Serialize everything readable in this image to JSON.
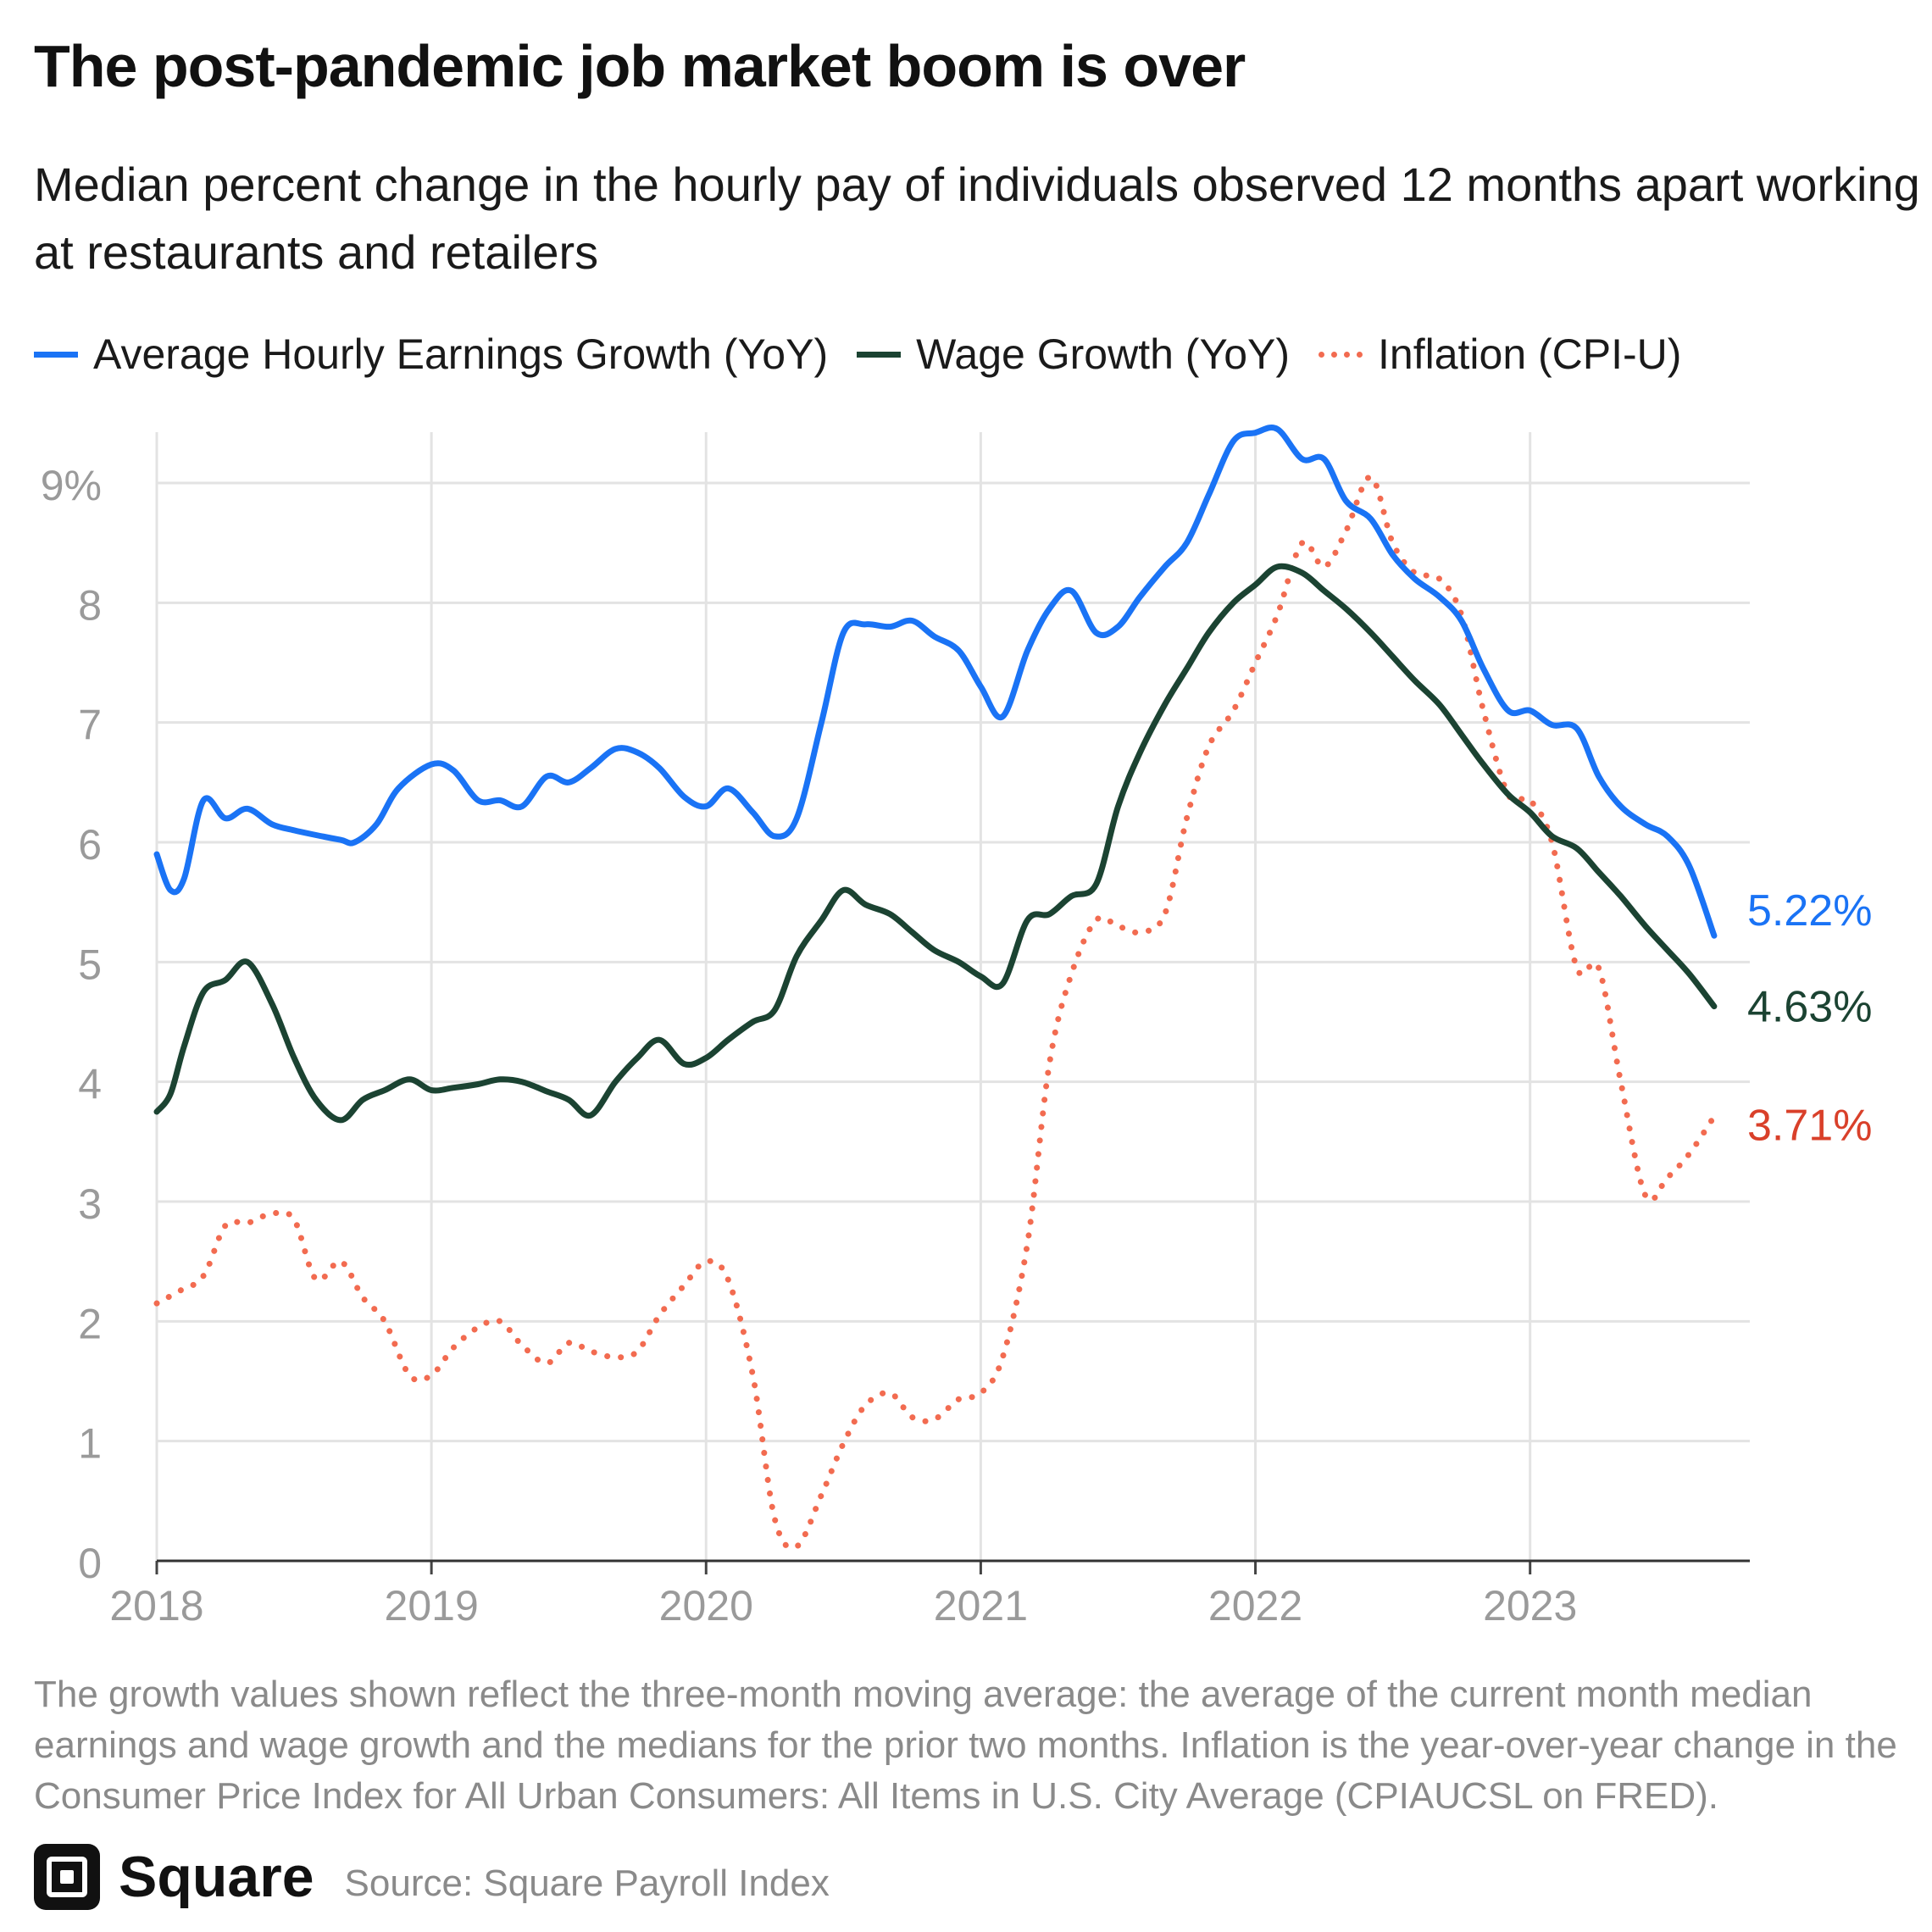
{
  "title": "The post-pandemic job market boom is over",
  "subtitle": "Median percent change in the hourly pay of individuals observed 12 months apart working at restaurants and retailers",
  "footnote": "The growth values shown reflect the three-month moving average: the average of the current month median earnings and wage growth and the medians for the prior two months. Inflation is the year-over-year change in the Consumer Price Index for All Urban Consumers: All Items in U.S. City Average (CPIAUCSL on FRED).",
  "brand": {
    "name": "Square",
    "logo_icon": "square-logo-icon"
  },
  "source": "Source: Square Payroll Index",
  "chart_data": {
    "type": "line",
    "title": "The post-pandemic job market boom is over",
    "xlabel": "",
    "ylabel": "",
    "xlim": [
      2018.0,
      2023.8
    ],
    "ylim": [
      0,
      9.5
    ],
    "grid": true,
    "legend_placement": "top",
    "x_ticks": [
      {
        "value": 2018,
        "label": "2018"
      },
      {
        "value": 2019,
        "label": "2019"
      },
      {
        "value": 2020,
        "label": "2020"
      },
      {
        "value": 2021,
        "label": "2021"
      },
      {
        "value": 2022,
        "label": "2022"
      },
      {
        "value": 2023,
        "label": "2023"
      }
    ],
    "y_ticks": [
      {
        "value": 0,
        "label": "0"
      },
      {
        "value": 1,
        "label": "1"
      },
      {
        "value": 2,
        "label": "2"
      },
      {
        "value": 3,
        "label": "3"
      },
      {
        "value": 4,
        "label": "4"
      },
      {
        "value": 5,
        "label": "5"
      },
      {
        "value": 6,
        "label": "6"
      },
      {
        "value": 7,
        "label": "7"
      },
      {
        "value": 8,
        "label": "8"
      },
      {
        "value": 9,
        "label": "9%"
      }
    ],
    "series": [
      {
        "name": "Average Hourly Earnings Growth (YoY)",
        "color": "#1a73f5",
        "style": "solid",
        "end_label": "5.22%",
        "points": [
          [
            2018.0,
            5.9
          ],
          [
            2018.05,
            5.6
          ],
          [
            2018.1,
            5.7
          ],
          [
            2018.17,
            6.35
          ],
          [
            2018.25,
            6.2
          ],
          [
            2018.33,
            6.28
          ],
          [
            2018.42,
            6.15
          ],
          [
            2018.5,
            6.1
          ],
          [
            2018.58,
            6.06
          ],
          [
            2018.67,
            6.02
          ],
          [
            2018.72,
            6.0
          ],
          [
            2018.8,
            6.15
          ],
          [
            2018.88,
            6.45
          ],
          [
            2019.0,
            6.65
          ],
          [
            2019.08,
            6.6
          ],
          [
            2019.17,
            6.35
          ],
          [
            2019.25,
            6.35
          ],
          [
            2019.33,
            6.3
          ],
          [
            2019.42,
            6.55
          ],
          [
            2019.5,
            6.5
          ],
          [
            2019.58,
            6.62
          ],
          [
            2019.67,
            6.78
          ],
          [
            2019.75,
            6.75
          ],
          [
            2019.83,
            6.62
          ],
          [
            2019.92,
            6.38
          ],
          [
            2020.0,
            6.3
          ],
          [
            2020.08,
            6.45
          ],
          [
            2020.17,
            6.25
          ],
          [
            2020.25,
            6.05
          ],
          [
            2020.33,
            6.2
          ],
          [
            2020.42,
            7.0
          ],
          [
            2020.5,
            7.75
          ],
          [
            2020.58,
            7.82
          ],
          [
            2020.67,
            7.8
          ],
          [
            2020.75,
            7.85
          ],
          [
            2020.83,
            7.72
          ],
          [
            2020.92,
            7.6
          ],
          [
            2021.0,
            7.3
          ],
          [
            2021.08,
            7.05
          ],
          [
            2021.17,
            7.6
          ],
          [
            2021.25,
            7.95
          ],
          [
            2021.33,
            8.1
          ],
          [
            2021.42,
            7.75
          ],
          [
            2021.5,
            7.8
          ],
          [
            2021.58,
            8.05
          ],
          [
            2021.67,
            8.3
          ],
          [
            2021.75,
            8.5
          ],
          [
            2021.83,
            8.9
          ],
          [
            2021.92,
            9.35
          ],
          [
            2022.0,
            9.42
          ],
          [
            2022.08,
            9.45
          ],
          [
            2022.17,
            9.2
          ],
          [
            2022.25,
            9.2
          ],
          [
            2022.33,
            8.85
          ],
          [
            2022.42,
            8.7
          ],
          [
            2022.5,
            8.4
          ],
          [
            2022.58,
            8.2
          ],
          [
            2022.67,
            8.05
          ],
          [
            2022.75,
            7.85
          ],
          [
            2022.83,
            7.45
          ],
          [
            2022.92,
            7.1
          ],
          [
            2023.0,
            7.1
          ],
          [
            2023.08,
            6.98
          ],
          [
            2023.17,
            6.95
          ],
          [
            2023.25,
            6.55
          ],
          [
            2023.33,
            6.3
          ],
          [
            2023.42,
            6.15
          ],
          [
            2023.5,
            6.05
          ],
          [
            2023.58,
            5.8
          ],
          [
            2023.67,
            5.22
          ]
        ]
      },
      {
        "name": "Wage Growth (YoY)",
        "color": "#1b4332",
        "style": "solid",
        "end_label": "4.63%",
        "points": [
          [
            2018.0,
            3.75
          ],
          [
            2018.05,
            3.9
          ],
          [
            2018.1,
            4.3
          ],
          [
            2018.17,
            4.75
          ],
          [
            2018.25,
            4.85
          ],
          [
            2018.33,
            5.0
          ],
          [
            2018.42,
            4.65
          ],
          [
            2018.5,
            4.2
          ],
          [
            2018.58,
            3.85
          ],
          [
            2018.67,
            3.68
          ],
          [
            2018.75,
            3.85
          ],
          [
            2018.83,
            3.93
          ],
          [
            2018.92,
            4.02
          ],
          [
            2019.0,
            3.93
          ],
          [
            2019.08,
            3.95
          ],
          [
            2019.17,
            3.98
          ],
          [
            2019.25,
            4.02
          ],
          [
            2019.33,
            4.0
          ],
          [
            2019.42,
            3.92
          ],
          [
            2019.5,
            3.85
          ],
          [
            2019.58,
            3.72
          ],
          [
            2019.67,
            4.0
          ],
          [
            2019.75,
            4.2
          ],
          [
            2019.83,
            4.35
          ],
          [
            2019.92,
            4.15
          ],
          [
            2020.0,
            4.2
          ],
          [
            2020.08,
            4.35
          ],
          [
            2020.17,
            4.5
          ],
          [
            2020.25,
            4.6
          ],
          [
            2020.33,
            5.05
          ],
          [
            2020.42,
            5.35
          ],
          [
            2020.5,
            5.6
          ],
          [
            2020.58,
            5.48
          ],
          [
            2020.67,
            5.4
          ],
          [
            2020.75,
            5.25
          ],
          [
            2020.83,
            5.1
          ],
          [
            2020.92,
            5.0
          ],
          [
            2021.0,
            4.88
          ],
          [
            2021.08,
            4.82
          ],
          [
            2021.17,
            5.35
          ],
          [
            2021.25,
            5.4
          ],
          [
            2021.33,
            5.55
          ],
          [
            2021.42,
            5.65
          ],
          [
            2021.5,
            6.3
          ],
          [
            2021.58,
            6.75
          ],
          [
            2021.67,
            7.15
          ],
          [
            2021.75,
            7.45
          ],
          [
            2021.83,
            7.75
          ],
          [
            2021.92,
            8.0
          ],
          [
            2022.0,
            8.15
          ],
          [
            2022.08,
            8.3
          ],
          [
            2022.17,
            8.25
          ],
          [
            2022.25,
            8.1
          ],
          [
            2022.33,
            7.95
          ],
          [
            2022.42,
            7.75
          ],
          [
            2022.5,
            7.55
          ],
          [
            2022.58,
            7.35
          ],
          [
            2022.67,
            7.15
          ],
          [
            2022.75,
            6.9
          ],
          [
            2022.83,
            6.65
          ],
          [
            2022.92,
            6.4
          ],
          [
            2023.0,
            6.25
          ],
          [
            2023.08,
            6.05
          ],
          [
            2023.17,
            5.95
          ],
          [
            2023.25,
            5.75
          ],
          [
            2023.33,
            5.55
          ],
          [
            2023.42,
            5.3
          ],
          [
            2023.5,
            5.1
          ],
          [
            2023.58,
            4.9
          ],
          [
            2023.67,
            4.63
          ]
        ]
      },
      {
        "name": "Inflation (CPI-U)",
        "color": "#f26b50",
        "style": "dotted",
        "end_label": "3.71%",
        "points": [
          [
            2018.0,
            2.15
          ],
          [
            2018.08,
            2.25
          ],
          [
            2018.17,
            2.38
          ],
          [
            2018.25,
            2.8
          ],
          [
            2018.33,
            2.82
          ],
          [
            2018.42,
            2.9
          ],
          [
            2018.5,
            2.85
          ],
          [
            2018.58,
            2.35
          ],
          [
            2018.67,
            2.5
          ],
          [
            2018.75,
            2.2
          ],
          [
            2018.83,
            2.0
          ],
          [
            2018.92,
            1.55
          ],
          [
            2019.0,
            1.55
          ],
          [
            2019.08,
            1.78
          ],
          [
            2019.17,
            1.95
          ],
          [
            2019.25,
            2.0
          ],
          [
            2019.33,
            1.8
          ],
          [
            2019.42,
            1.65
          ],
          [
            2019.5,
            1.82
          ],
          [
            2019.58,
            1.75
          ],
          [
            2019.67,
            1.7
          ],
          [
            2019.75,
            1.75
          ],
          [
            2019.83,
            2.05
          ],
          [
            2019.92,
            2.3
          ],
          [
            2020.0,
            2.5
          ],
          [
            2020.08,
            2.35
          ],
          [
            2020.17,
            1.55
          ],
          [
            2020.25,
            0.35
          ],
          [
            2020.33,
            0.12
          ],
          [
            2020.42,
            0.55
          ],
          [
            2020.5,
            0.98
          ],
          [
            2020.58,
            1.3
          ],
          [
            2020.67,
            1.4
          ],
          [
            2020.75,
            1.2
          ],
          [
            2020.83,
            1.18
          ],
          [
            2020.92,
            1.35
          ],
          [
            2021.0,
            1.4
          ],
          [
            2021.08,
            1.7
          ],
          [
            2021.17,
            2.65
          ],
          [
            2021.25,
            4.15
          ],
          [
            2021.33,
            4.9
          ],
          [
            2021.42,
            5.35
          ],
          [
            2021.5,
            5.3
          ],
          [
            2021.58,
            5.25
          ],
          [
            2021.67,
            5.4
          ],
          [
            2021.75,
            6.2
          ],
          [
            2021.83,
            6.8
          ],
          [
            2021.92,
            7.1
          ],
          [
            2022.0,
            7.5
          ],
          [
            2022.08,
            7.9
          ],
          [
            2022.17,
            8.5
          ],
          [
            2022.25,
            8.3
          ],
          [
            2022.33,
            8.6
          ],
          [
            2022.42,
            9.05
          ],
          [
            2022.5,
            8.5
          ],
          [
            2022.58,
            8.25
          ],
          [
            2022.67,
            8.2
          ],
          [
            2022.75,
            7.9
          ],
          [
            2022.83,
            7.1
          ],
          [
            2022.92,
            6.4
          ],
          [
            2023.0,
            6.35
          ],
          [
            2023.08,
            6.0
          ],
          [
            2023.17,
            4.95
          ],
          [
            2023.25,
            4.95
          ],
          [
            2023.33,
            4.0
          ],
          [
            2023.42,
            3.05
          ],
          [
            2023.5,
            3.2
          ],
          [
            2023.58,
            3.4
          ],
          [
            2023.67,
            3.71
          ]
        ]
      }
    ]
  }
}
